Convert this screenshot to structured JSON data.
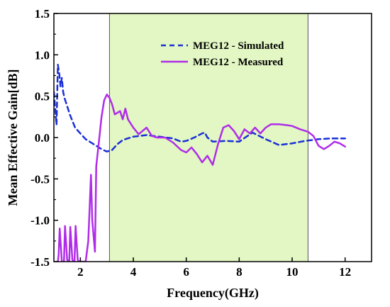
{
  "chart_data": {
    "type": "line",
    "xlabel": "Frequency(GHz)",
    "ylabel": "Mean Effective Gain[dB]",
    "xlim": [
      1,
      13
    ],
    "ylim": [
      -1.5,
      1.5
    ],
    "x_ticks": [
      2,
      4,
      6,
      8,
      10,
      12
    ],
    "y_ticks": [
      -1.5,
      -1.0,
      -0.5,
      0.0,
      0.5,
      1.0,
      1.5
    ],
    "x_tick_labels": [
      "2",
      "4",
      "6",
      "8",
      "10",
      "12"
    ],
    "y_tick_labels": [
      "-1.5",
      "-1.0",
      "-0.5",
      "0.0",
      "0.5",
      "1.0",
      "1.5"
    ],
    "shaded_band": {
      "x_start": 3.1,
      "x_end": 10.6,
      "color": "#e2f7c3"
    },
    "legend_position": "top-right",
    "series": [
      {
        "name": "MEG12 - Simulated",
        "color": "#1a2fd8",
        "style": "dashed",
        "x": [
          1.0,
          1.05,
          1.1,
          1.15,
          1.2,
          1.25,
          1.3,
          1.35,
          1.4,
          1.5,
          1.6,
          1.8,
          2.0,
          2.2,
          2.5,
          2.8,
          3.0,
          3.2,
          3.4,
          3.6,
          4.0,
          4.5,
          5.0,
          5.5,
          5.8,
          6.0,
          6.3,
          6.6,
          6.7,
          6.8,
          7.0,
          7.5,
          8.0,
          8.5,
          9.0,
          9.5,
          10.0,
          10.5,
          11.0,
          11.5,
          12.0
        ],
        "y": [
          0.55,
          0.35,
          0.15,
          0.88,
          0.78,
          0.62,
          0.72,
          0.55,
          0.48,
          0.38,
          0.28,
          0.12,
          0.05,
          -0.02,
          -0.08,
          -0.14,
          -0.17,
          -0.15,
          -0.08,
          -0.03,
          0.01,
          0.03,
          0.01,
          -0.01,
          -0.05,
          -0.04,
          0.0,
          0.05,
          0.06,
          0.0,
          -0.05,
          -0.04,
          -0.05,
          0.06,
          -0.02,
          -0.09,
          -0.07,
          -0.04,
          -0.02,
          -0.01,
          -0.01
        ]
      },
      {
        "name": "MEG12 - Measured",
        "color": "#b02ce8",
        "style": "solid",
        "x": [
          1.15,
          1.18,
          1.22,
          1.3,
          1.38,
          1.42,
          1.5,
          1.58,
          1.62,
          1.7,
          1.78,
          1.82,
          1.9,
          1.96,
          2.0,
          2.1,
          2.2,
          2.3,
          2.4,
          2.45,
          2.55,
          2.6,
          2.7,
          2.8,
          2.9,
          3.0,
          3.1,
          3.2,
          3.3,
          3.5,
          3.6,
          3.7,
          3.8,
          4.0,
          4.2,
          4.5,
          4.7,
          4.9,
          5.2,
          5.5,
          5.8,
          6.0,
          6.2,
          6.4,
          6.6,
          6.8,
          7.0,
          7.2,
          7.4,
          7.6,
          7.8,
          8.0,
          8.2,
          8.4,
          8.6,
          8.8,
          9.0,
          9.2,
          9.5,
          9.8,
          10.0,
          10.3,
          10.6,
          10.8,
          11.0,
          11.2,
          11.4,
          11.6,
          11.8,
          12.0
        ],
        "y": [
          -1.5,
          -1.42,
          -1.1,
          -1.5,
          -1.5,
          -1.07,
          -1.48,
          -1.5,
          -1.08,
          -1.48,
          -1.5,
          -1.07,
          -1.48,
          -1.5,
          -1.5,
          -1.5,
          -1.5,
          -1.25,
          -0.45,
          -1.0,
          -1.38,
          -0.35,
          -0.05,
          0.25,
          0.45,
          0.52,
          0.48,
          0.4,
          0.28,
          0.32,
          0.22,
          0.35,
          0.22,
          0.12,
          0.04,
          0.12,
          0.02,
          0.0,
          0.0,
          -0.06,
          -0.15,
          -0.18,
          -0.12,
          -0.2,
          -0.3,
          -0.22,
          -0.33,
          -0.08,
          0.12,
          0.15,
          0.08,
          -0.02,
          0.1,
          0.05,
          0.12,
          0.05,
          0.12,
          0.16,
          0.16,
          0.15,
          0.14,
          0.1,
          0.07,
          0.02,
          -0.1,
          -0.14,
          -0.1,
          -0.05,
          -0.07,
          -0.11
        ]
      }
    ]
  }
}
